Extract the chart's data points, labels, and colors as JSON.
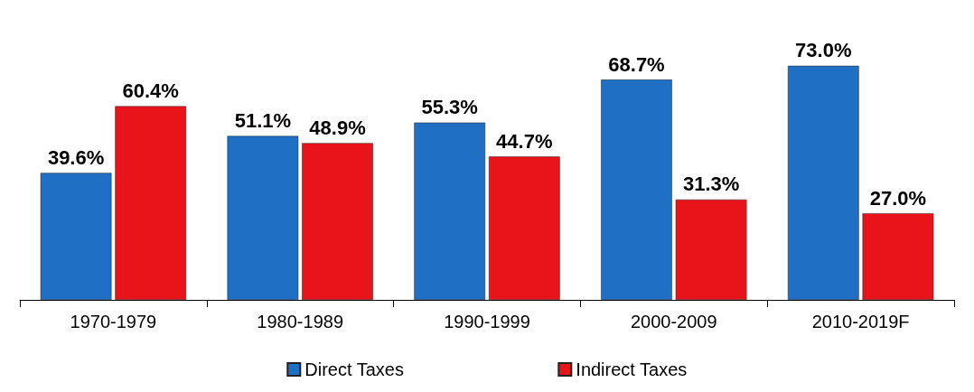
{
  "chart_data": {
    "type": "bar",
    "categories": [
      "1970-1979",
      "1980-1989",
      "1990-1999",
      "2000-2009",
      "2010-2019F"
    ],
    "series": [
      {
        "name": "Direct Taxes",
        "color": "#1f6fc5",
        "values": [
          39.6,
          51.1,
          55.3,
          68.7,
          73.0
        ],
        "value_labels": [
          "39.6%",
          "51.1%",
          "55.3%",
          "68.7%",
          "73.0%"
        ]
      },
      {
        "name": "Indirect Taxes",
        "color": "#e8141a",
        "values": [
          60.4,
          48.9,
          44.7,
          31.3,
          27.0
        ],
        "value_labels": [
          "60.4%",
          "48.9%",
          "44.7%",
          "31.3%",
          "27.0%"
        ]
      }
    ],
    "legend": "bottom",
    "grid": false
  }
}
